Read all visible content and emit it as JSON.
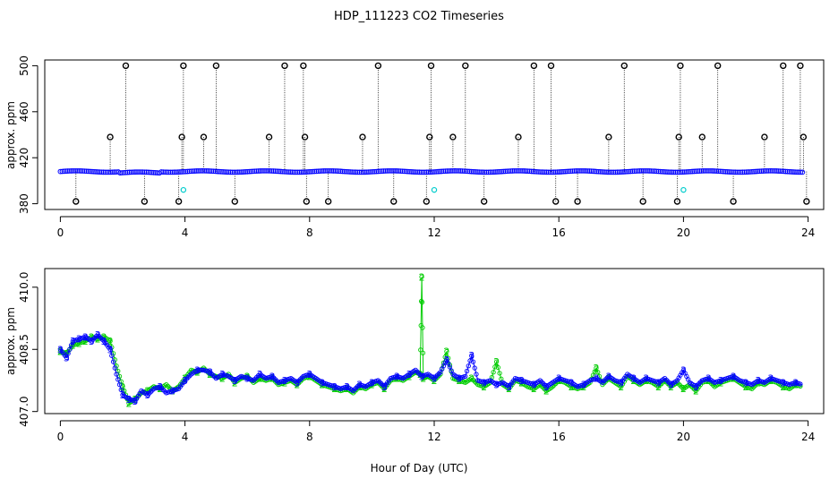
{
  "title": "HDP_111223  CO2 Timeseries",
  "xlabel": "Hour of Day (UTC)",
  "colors": {
    "frame": "#000000",
    "blue": "#0000ff",
    "green": "#00cc00",
    "cyan": "#00cccc",
    "black": "#000000"
  },
  "chart_data": [
    {
      "type": "scatter",
      "title": "",
      "xlabel": "",
      "ylabel": "approx. ppm",
      "xlim": [
        -0.5,
        24.5
      ],
      "ylim": [
        375,
        505
      ],
      "x_ticks": [
        "0",
        "4",
        "8",
        "12",
        "16",
        "20",
        "24"
      ],
      "x_tick_values": [
        0,
        4,
        8,
        12,
        16,
        20,
        24
      ],
      "y_ticks": [
        "380",
        "420",
        "460",
        "500"
      ],
      "y_tick_values": [
        380,
        420,
        460,
        500
      ],
      "baseline": 408,
      "outliers": [
        {
          "x": 0.5,
          "y": 382
        },
        {
          "x": 1.6,
          "y": 438
        },
        {
          "x": 2.1,
          "y": 500
        },
        {
          "x": 2.7,
          "y": 382
        },
        {
          "x": 3.8,
          "y": 382
        },
        {
          "x": 3.9,
          "y": 438
        },
        {
          "x": 3.95,
          "y": 500
        },
        {
          "x": 4.6,
          "y": 438
        },
        {
          "x": 5.0,
          "y": 500
        },
        {
          "x": 5.6,
          "y": 382
        },
        {
          "x": 6.7,
          "y": 438
        },
        {
          "x": 7.2,
          "y": 500
        },
        {
          "x": 7.8,
          "y": 500
        },
        {
          "x": 7.85,
          "y": 438
        },
        {
          "x": 7.9,
          "y": 382
        },
        {
          "x": 8.6,
          "y": 382
        },
        {
          "x": 9.7,
          "y": 438
        },
        {
          "x": 10.2,
          "y": 500
        },
        {
          "x": 10.7,
          "y": 382
        },
        {
          "x": 11.75,
          "y": 382
        },
        {
          "x": 11.85,
          "y": 438
        },
        {
          "x": 11.9,
          "y": 500
        },
        {
          "x": 12.6,
          "y": 438
        },
        {
          "x": 13.0,
          "y": 500
        },
        {
          "x": 13.6,
          "y": 382
        },
        {
          "x": 14.7,
          "y": 438
        },
        {
          "x": 15.2,
          "y": 500
        },
        {
          "x": 15.75,
          "y": 500
        },
        {
          "x": 15.9,
          "y": 382
        },
        {
          "x": 16.6,
          "y": 382
        },
        {
          "x": 17.6,
          "y": 438
        },
        {
          "x": 18.1,
          "y": 500
        },
        {
          "x": 18.7,
          "y": 382
        },
        {
          "x": 19.8,
          "y": 382
        },
        {
          "x": 19.85,
          "y": 438
        },
        {
          "x": 19.9,
          "y": 500
        },
        {
          "x": 20.6,
          "y": 438
        },
        {
          "x": 21.1,
          "y": 500
        },
        {
          "x": 21.6,
          "y": 382
        },
        {
          "x": 22.6,
          "y": 438
        },
        {
          "x": 23.2,
          "y": 500
        },
        {
          "x": 23.75,
          "y": 500
        },
        {
          "x": 23.85,
          "y": 438
        },
        {
          "x": 23.95,
          "y": 382
        }
      ],
      "cyan_points": [
        {
          "x": 3.95,
          "y": 392
        },
        {
          "x": 12.0,
          "y": 392
        },
        {
          "x": 20.0,
          "y": 392
        }
      ]
    },
    {
      "type": "line",
      "title": "",
      "xlabel": "Hour of Day (UTC)",
      "ylabel": "approx. ppm",
      "xlim": [
        -0.5,
        24.5
      ],
      "ylim": [
        406.95,
        410.45
      ],
      "x_ticks": [
        "0",
        "4",
        "8",
        "12",
        "16",
        "20",
        "24"
      ],
      "x_tick_values": [
        0,
        4,
        8,
        12,
        16,
        20,
        24
      ],
      "y_ticks": [
        "407.0",
        "408.5",
        "410.0"
      ],
      "y_tick_values": [
        407.0,
        408.5,
        410.0
      ],
      "series": [
        {
          "name": "3",
          "marker": "3",
          "x": [
            0.0,
            0.2,
            0.4,
            0.6,
            0.8,
            1.0,
            1.2,
            1.4,
            1.6,
            1.8,
            2.0,
            2.2,
            2.4,
            2.6,
            2.8,
            3.0,
            3.2,
            3.4,
            3.6,
            3.8,
            4.0,
            4.2,
            4.4,
            4.6,
            4.8,
            5.0,
            5.2,
            5.4,
            5.6,
            5.8,
            6.0,
            6.2,
            6.4,
            6.6,
            6.8,
            7.0,
            7.2,
            7.4,
            7.6,
            7.8,
            8.0,
            8.2,
            8.4,
            8.6,
            8.8,
            9.0,
            9.2,
            9.4,
            9.6,
            9.8,
            10.0,
            10.2,
            10.4,
            10.6,
            10.8,
            11.0,
            11.2,
            11.4,
            11.6,
            11.8,
            12.0,
            12.2,
            12.4,
            12.6,
            12.8,
            13.0,
            13.2,
            13.4,
            13.6,
            13.8,
            14.0,
            14.2,
            14.4,
            14.6,
            14.8,
            15.0,
            15.2,
            15.4,
            15.6,
            15.8,
            16.0,
            16.2,
            16.4,
            16.6,
            16.8,
            17.0,
            17.2,
            17.4,
            17.6,
            17.8,
            18.0,
            18.2,
            18.4,
            18.6,
            18.8,
            19.0,
            19.2,
            19.4,
            19.6,
            19.8,
            20.0,
            20.2,
            20.4,
            20.6,
            20.8,
            21.0,
            21.2,
            21.4,
            21.6,
            21.8,
            22.0,
            22.2,
            22.4,
            22.6,
            22.8,
            23.0,
            23.2,
            23.4,
            23.6,
            23.8
          ],
          "values": [
            408.5,
            408.3,
            408.7,
            408.75,
            408.8,
            408.7,
            408.85,
            408.7,
            408.5,
            407.9,
            407.4,
            407.3,
            407.25,
            407.5,
            407.4,
            407.55,
            407.6,
            407.45,
            407.5,
            407.55,
            407.75,
            407.9,
            408.0,
            408.0,
            407.95,
            407.8,
            407.9,
            407.85,
            407.75,
            407.85,
            407.8,
            407.75,
            407.9,
            407.8,
            407.85,
            407.7,
            407.75,
            407.8,
            407.7,
            407.85,
            407.9,
            407.8,
            407.7,
            407.65,
            407.6,
            407.55,
            407.6,
            407.5,
            407.65,
            407.6,
            407.7,
            407.75,
            407.6,
            407.8,
            407.85,
            407.8,
            407.9,
            408.0,
            407.85,
            407.9,
            407.8,
            407.95,
            408.25,
            407.9,
            407.8,
            407.85,
            408.35,
            407.75,
            407.7,
            407.75,
            407.65,
            407.7,
            407.6,
            407.8,
            407.75,
            407.7,
            407.65,
            407.75,
            407.6,
            407.7,
            407.8,
            407.75,
            407.7,
            407.6,
            407.65,
            407.75,
            407.8,
            407.7,
            407.85,
            407.75,
            407.7,
            407.9,
            407.8,
            407.7,
            407.8,
            407.75,
            407.7,
            407.8,
            407.65,
            407.75,
            408.0,
            407.7,
            407.6,
            407.75,
            407.8,
            407.7,
            407.75,
            407.8,
            407.85,
            407.75,
            407.7,
            407.65,
            407.75,
            407.7,
            407.8,
            407.75,
            407.7,
            407.65,
            407.7,
            407.65
          ]
        },
        {
          "name": "2",
          "marker": "2",
          "x": [
            0.0,
            0.2,
            0.4,
            0.6,
            0.8,
            1.0,
            1.2,
            1.4,
            1.6,
            1.8,
            2.0,
            2.2,
            2.4,
            2.6,
            2.8,
            3.0,
            3.2,
            3.4,
            3.6,
            3.8,
            4.0,
            4.2,
            4.4,
            4.6,
            4.8,
            5.0,
            5.2,
            5.4,
            5.6,
            5.8,
            6.0,
            6.2,
            6.4,
            6.6,
            6.8,
            7.0,
            7.2,
            7.4,
            7.6,
            7.8,
            8.0,
            8.2,
            8.4,
            8.6,
            8.8,
            9.0,
            9.2,
            9.4,
            9.6,
            9.8,
            10.0,
            10.2,
            10.4,
            10.6,
            10.8,
            11.0,
            11.2,
            11.4,
            11.55,
            11.6,
            11.65,
            11.8,
            12.0,
            12.2,
            12.4,
            12.6,
            12.8,
            13.0,
            13.2,
            13.4,
            13.6,
            13.8,
            14.0,
            14.2,
            14.4,
            14.6,
            14.8,
            15.0,
            15.2,
            15.4,
            15.6,
            15.8,
            16.0,
            16.2,
            16.4,
            16.6,
            16.8,
            17.0,
            17.2,
            17.4,
            17.6,
            17.8,
            18.0,
            18.2,
            18.4,
            18.6,
            18.8,
            19.0,
            19.2,
            19.4,
            19.6,
            19.8,
            20.0,
            20.2,
            20.4,
            20.6,
            20.8,
            21.0,
            21.2,
            21.4,
            21.6,
            21.8,
            22.0,
            22.2,
            22.4,
            22.6,
            22.8,
            23.0,
            23.2,
            23.4,
            23.6,
            23.8
          ],
          "values": [
            408.45,
            408.4,
            408.6,
            408.65,
            408.7,
            408.8,
            408.75,
            408.8,
            408.7,
            408.1,
            407.6,
            407.2,
            407.3,
            407.45,
            407.5,
            407.6,
            407.55,
            407.65,
            407.5,
            407.6,
            407.8,
            408.0,
            407.95,
            408.05,
            407.9,
            407.85,
            407.8,
            407.9,
            407.7,
            407.8,
            407.85,
            407.7,
            407.8,
            407.75,
            407.8,
            407.65,
            407.7,
            407.75,
            407.65,
            407.8,
            407.85,
            407.75,
            407.65,
            407.6,
            407.55,
            407.5,
            407.55,
            407.45,
            407.6,
            407.55,
            407.65,
            407.7,
            407.55,
            407.75,
            407.8,
            407.75,
            407.85,
            407.95,
            407.9,
            410.25,
            407.8,
            407.85,
            407.75,
            407.9,
            408.45,
            407.8,
            407.75,
            407.7,
            407.8,
            407.65,
            407.6,
            407.7,
            408.2,
            407.65,
            407.55,
            407.75,
            407.7,
            407.6,
            407.55,
            407.65,
            407.5,
            407.6,
            407.75,
            407.7,
            407.6,
            407.55,
            407.6,
            407.7,
            408.05,
            407.65,
            407.8,
            407.7,
            407.6,
            407.85,
            407.75,
            407.65,
            407.75,
            407.7,
            407.6,
            407.75,
            407.6,
            407.7,
            407.55,
            407.65,
            407.5,
            407.7,
            407.75,
            407.6,
            407.7,
            407.75,
            407.8,
            407.7,
            407.6,
            407.55,
            407.7,
            407.65,
            407.75,
            407.7,
            407.6,
            407.55,
            407.65,
            407.6
          ]
        }
      ]
    }
  ]
}
